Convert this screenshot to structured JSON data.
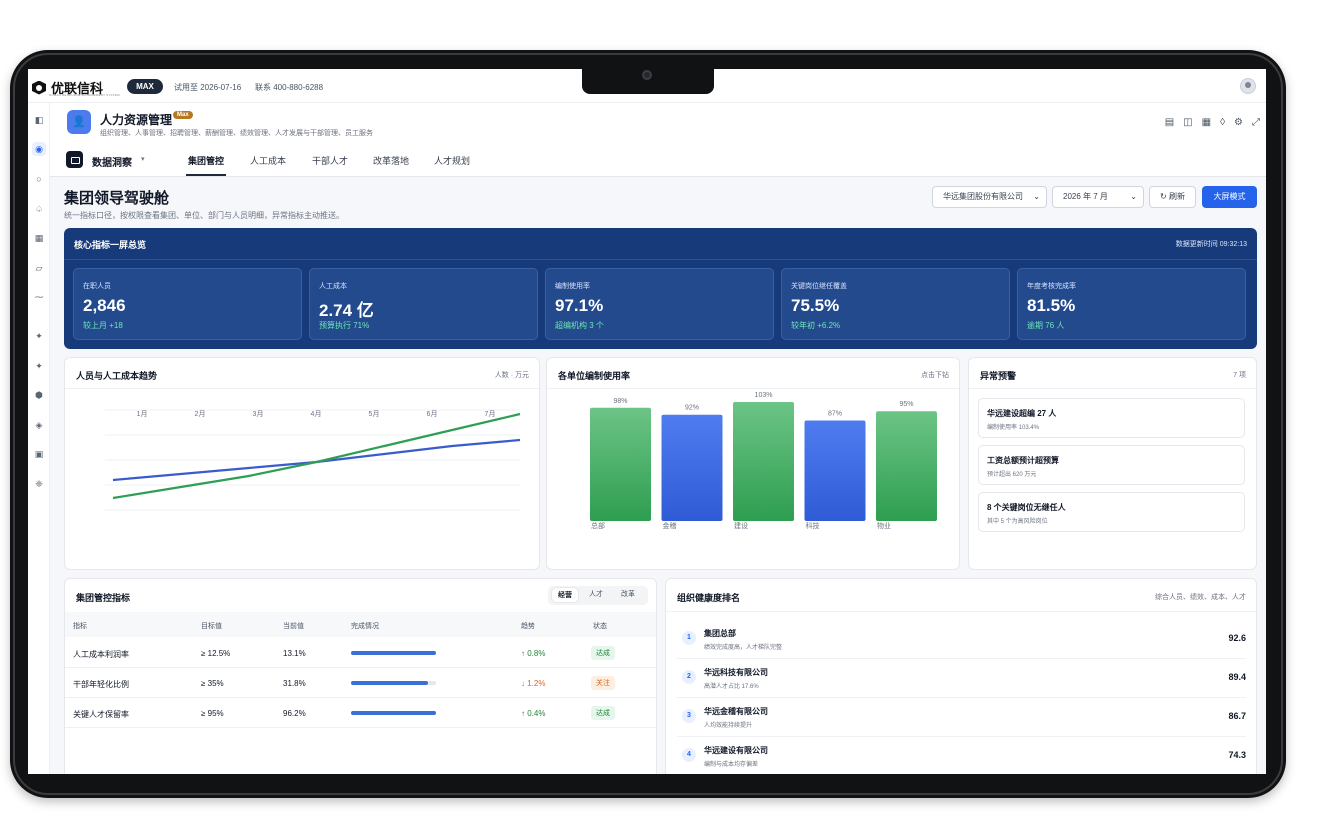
{
  "topbar": {
    "brand": "优联信科",
    "brand_sub": "HUMAN RESOURCE MANAGEMENT SYSTEM",
    "plan": "MAX",
    "trial": "试用至 2026-07-16",
    "contact": "联系 400-880-6288"
  },
  "module": {
    "title": "人力资源管理",
    "badge": "Max",
    "subtitle": "组织管理、人事管理、招聘管理、薪酬管理、绩效管理、人才发展与干部管理、员工服务"
  },
  "tabs": {
    "title": "数据洞察",
    "items": [
      "集团管控",
      "人工成本",
      "干部人才",
      "改革落地",
      "人才规划"
    ],
    "active": 0
  },
  "page": {
    "title": "集团领导驾驶舱",
    "subtitle": "统一指标口径，按权限查看集团、单位、部门与人员明细，异常指标主动推送。",
    "company": "华远集团股份有限公司",
    "period": "2026 年 7 月",
    "refresh": "↻ 刷新",
    "bigscreen": "大屏模式"
  },
  "kpi": {
    "title": "核心指标一屏总览",
    "updated": "数据更新时间 09:32:13",
    "cards": [
      {
        "label": "在职人员",
        "value": "2,846",
        "note": "较上月 +18"
      },
      {
        "label": "人工成本",
        "value": "2.74 亿",
        "note": "预算执行 71%"
      },
      {
        "label": "编制使用率",
        "value": "97.1%",
        "note": "超编机构 3 个"
      },
      {
        "label": "关键岗位继任覆盖",
        "value": "75.5%",
        "note": "较年初 +6.2%"
      },
      {
        "label": "年度考核完成率",
        "value": "81.5%",
        "note": "逾期 76 人"
      }
    ]
  },
  "trend": {
    "title": "人员与人工成本趋势",
    "meta": "人数 · 万元"
  },
  "bars": {
    "title": "各单位编制使用率",
    "meta": "点击下钻"
  },
  "alerts": {
    "title": "异常预警",
    "count": "7 项",
    "items": [
      {
        "main": "华远建设超编 27 人",
        "sub": "编制使用率 103.4%"
      },
      {
        "main": "工资总额预计超预算",
        "sub": "预计超出 620 万元"
      },
      {
        "main": "8 个关键岗位无继任人",
        "sub": "其中 5 个为高风险岗位"
      }
    ]
  },
  "control": {
    "title": "集团管控指标",
    "seg": [
      "经营",
      "人才",
      "改革"
    ],
    "headers": [
      "指标",
      "目标值",
      "当前值",
      "完成情况",
      "趋势",
      "状态"
    ],
    "rows": [
      {
        "name": "人工成本利润率",
        "target": "≥ 12.5%",
        "current": "13.1%",
        "progress": 1.0,
        "trend": "↑ 0.8%",
        "status": "达成",
        "ok": true
      },
      {
        "name": "干部年轻化比例",
        "target": "≥ 35%",
        "current": "31.8%",
        "progress": 0.91,
        "trend": "↓ 1.2%",
        "status": "关注",
        "ok": false
      },
      {
        "name": "关键人才保留率",
        "target": "≥ 95%",
        "current": "96.2%",
        "progress": 1.0,
        "trend": "↑ 0.4%",
        "status": "达成",
        "ok": true
      }
    ]
  },
  "ranking": {
    "title": "组织健康度排名",
    "meta": "综合人员、绩效、成本、人才",
    "items": [
      {
        "rank": "1",
        "name": "集团总部",
        "desc": "绩效完成度高，人才梯队完整",
        "score": "92.6"
      },
      {
        "rank": "2",
        "name": "华远科技有限公司",
        "desc": "高潜人才占比 17.6%",
        "score": "89.4"
      },
      {
        "rank": "3",
        "name": "华远金稽有限公司",
        "desc": "人均效能持续提升",
        "score": "86.7"
      },
      {
        "rank": "4",
        "name": "华远建设有限公司",
        "desc": "编制与成本均存偏差",
        "score": "74.3"
      }
    ]
  },
  "chart_data": [
    {
      "type": "line",
      "title": "人员与人工成本趋势",
      "categories": [
        "1月",
        "2月",
        "3月",
        "4月",
        "5月",
        "6月",
        "7月"
      ],
      "series": [
        {
          "values": [
            30,
            36,
            42,
            48,
            56,
            64,
            70
          ],
          "color": "#3a5bcc"
        },
        {
          "values": [
            12,
            23,
            34,
            48,
            64,
            80,
            96
          ],
          "color": "#2f9e55"
        }
      ],
      "ylim": [
        0,
        100
      ],
      "grid": true
    },
    {
      "type": "bar",
      "title": "各单位编制使用率",
      "categories": [
        "总部",
        "金稽",
        "建设",
        "科技",
        "物业"
      ],
      "values": [
        98,
        92,
        103,
        87,
        95
      ],
      "labels": [
        "98%",
        "92%",
        "103%",
        "87%",
        "95%"
      ],
      "colors": [
        "#34a853",
        "#3a66e0",
        "#34a853",
        "#3a66e0",
        "#34a853"
      ],
      "ylim": [
        0,
        103
      ]
    }
  ],
  "colors": {
    "primary": "#2563eb",
    "kpi_panel": "#173b7a",
    "success": "#22863a",
    "warning": "#d9652b"
  }
}
